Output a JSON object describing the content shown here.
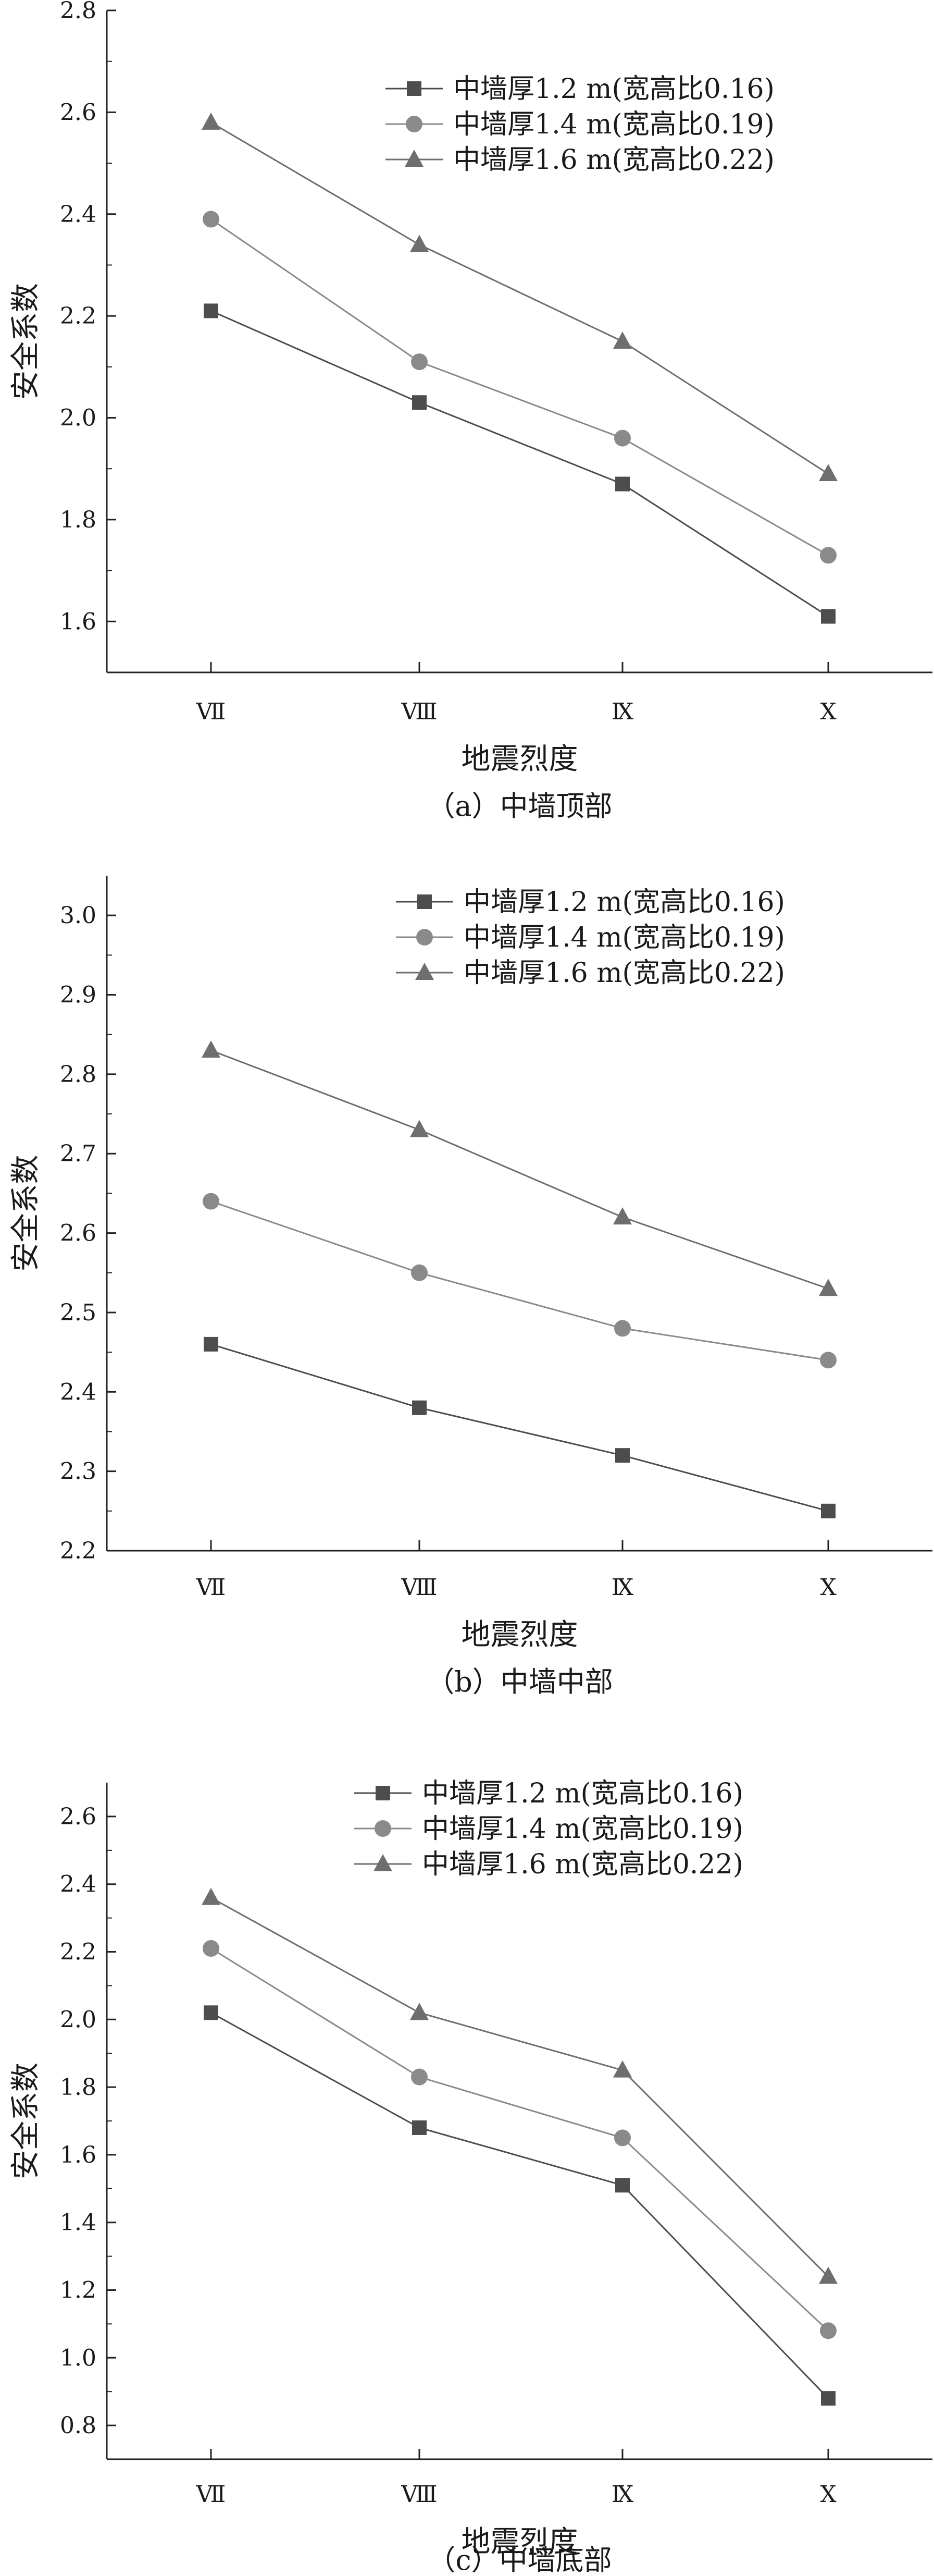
{
  "colors": {
    "series": [
      "#4d4d4d",
      "#8a8a8a",
      "#6e6e6e"
    ],
    "axis": "#222222"
  },
  "chart_data": [
    {
      "type": "line",
      "caption": "（a）中墙顶部",
      "xlabel": "地震烈度",
      "ylabel": "安全系数",
      "categories": [
        "Ⅶ",
        "Ⅷ",
        "Ⅸ",
        "Ⅹ"
      ],
      "ylim": [
        1.5,
        2.8
      ],
      "yticks": [
        "1.6",
        "1.8",
        "2.0",
        "2.2",
        "2.4",
        "2.6",
        "2.8"
      ],
      "legend_position": "top-right",
      "series": [
        {
          "name": "中墙厚1.2 m(宽高比0.16)",
          "marker": "square",
          "values": [
            2.21,
            2.03,
            1.87,
            1.61
          ]
        },
        {
          "name": "中墙厚1.4 m(宽高比0.19)",
          "marker": "circle",
          "values": [
            2.39,
            2.11,
            1.96,
            1.73
          ]
        },
        {
          "name": "中墙厚1.6 m(宽高比0.22)",
          "marker": "triangle",
          "values": [
            2.58,
            2.34,
            2.15,
            1.89
          ]
        }
      ]
    },
    {
      "type": "line",
      "caption": "（b）中墙中部",
      "xlabel": "地震烈度",
      "ylabel": "安全系数",
      "categories": [
        "Ⅶ",
        "Ⅷ",
        "Ⅸ",
        "Ⅹ"
      ],
      "ylim": [
        2.2,
        3.05
      ],
      "yticks": [
        "2.2",
        "2.3",
        "2.4",
        "2.5",
        "2.6",
        "2.7",
        "2.8",
        "2.9",
        "3.0"
      ],
      "legend_position": "top-right",
      "series": [
        {
          "name": "中墙厚1.2 m(宽高比0.16)",
          "marker": "square",
          "values": [
            2.46,
            2.38,
            2.32,
            2.25
          ]
        },
        {
          "name": "中墙厚1.4 m(宽高比0.19)",
          "marker": "circle",
          "values": [
            2.64,
            2.55,
            2.48,
            2.44
          ]
        },
        {
          "name": "中墙厚1.6 m(宽高比0.22)",
          "marker": "triangle",
          "values": [
            2.83,
            2.73,
            2.62,
            2.53
          ]
        }
      ]
    },
    {
      "type": "line",
      "caption": "（c）中墙底部",
      "xlabel": "地震烈度",
      "ylabel": "安全系数",
      "categories": [
        "Ⅶ",
        "Ⅷ",
        "Ⅸ",
        "Ⅹ"
      ],
      "ylim": [
        0.7,
        2.7
      ],
      "yticks": [
        "0.8",
        "1.0",
        "1.2",
        "1.4",
        "1.6",
        "1.8",
        "2.0",
        "2.2",
        "2.4",
        "2.6"
      ],
      "legend_position": "top-right",
      "series": [
        {
          "name": "中墙厚1.2 m(宽高比0.16)",
          "marker": "square",
          "values": [
            2.02,
            1.68,
            1.51,
            0.88
          ]
        },
        {
          "name": "中墙厚1.4 m(宽高比0.19)",
          "marker": "circle",
          "values": [
            2.21,
            1.83,
            1.65,
            1.08
          ]
        },
        {
          "name": "中墙厚1.6 m(宽高比0.22)",
          "marker": "triangle",
          "values": [
            2.36,
            2.02,
            1.85,
            1.24
          ]
        }
      ]
    }
  ]
}
